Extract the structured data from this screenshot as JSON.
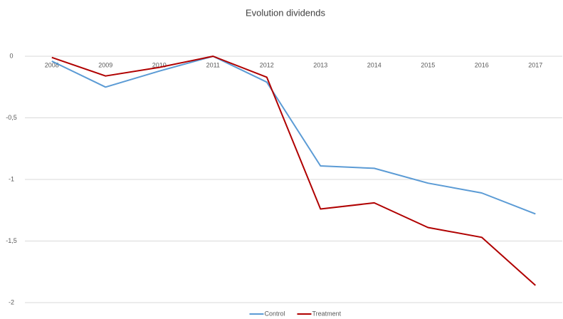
{
  "chart_data": {
    "type": "line",
    "title": "Evolution dividends",
    "categories": [
      "2008",
      "2009",
      "2010",
      "2011",
      "2012",
      "2013",
      "2014",
      "2015",
      "2016",
      "2017"
    ],
    "series": [
      {
        "name": "Control",
        "color": "#5b9bd5",
        "values": [
          -0.04,
          -0.25,
          -0.12,
          0,
          -0.21,
          -0.89,
          -0.91,
          -1.03,
          -1.11,
          -1.28
        ]
      },
      {
        "name": "Treatment",
        "color": "#b00000",
        "values": [
          -0.01,
          -0.16,
          -0.09,
          0,
          -0.17,
          -1.24,
          -1.19,
          -1.39,
          -1.47,
          -1.86
        ]
      }
    ],
    "ylim": [
      -2,
      0
    ],
    "yticks": [
      0,
      {
        "value": -0.5,
        "label": "-0,5"
      },
      -1,
      {
        "value": -1.5,
        "label": "-1,5"
      },
      -2
    ],
    "grid": true,
    "legend": "bottom"
  }
}
